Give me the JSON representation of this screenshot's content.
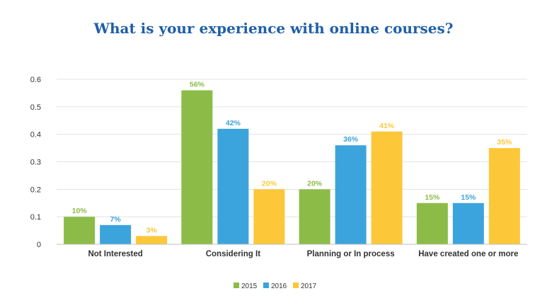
{
  "chart_data": {
    "type": "bar",
    "title": "What is your experience with online courses?",
    "categories": [
      "Not Interested",
      "Considering It",
      "Planning or In process",
      "Have created one or more"
    ],
    "series": [
      {
        "name": "2015",
        "color": "#8cbc47",
        "values": [
          0.1,
          0.56,
          0.2,
          0.15
        ],
        "labels": [
          "10%",
          "56%",
          "20%",
          "15%"
        ]
      },
      {
        "name": "2016",
        "color": "#3ca4dc",
        "values": [
          0.07,
          0.42,
          0.36,
          0.15
        ],
        "labels": [
          "7%",
          "42%",
          "36%",
          "15%"
        ]
      },
      {
        "name": "2017",
        "color": "#fcc83a",
        "values": [
          0.03,
          0.2,
          0.41,
          0.35
        ],
        "labels": [
          "3%",
          "20%",
          "41%",
          "35%"
        ]
      }
    ],
    "yticks": [
      "0",
      "0.1",
      "0.2",
      "0.3",
      "0.4",
      "0.5",
      "0.6"
    ],
    "ylim": [
      0,
      0.6
    ],
    "grid": true,
    "legend_position": "bottom-center"
  }
}
